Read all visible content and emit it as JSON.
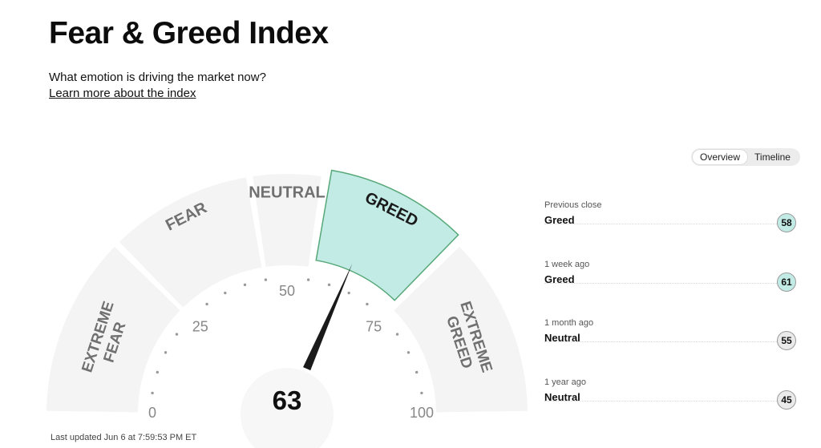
{
  "header": {
    "title": "Fear & Greed Index",
    "subtitle": "What emotion is driving the market now?",
    "learn_more": "Learn more about the index"
  },
  "view_toggle": {
    "options": [
      "Overview",
      "Timeline"
    ],
    "selected": "Overview"
  },
  "gauge": {
    "value": 63,
    "value_text": "63",
    "current_zone": "GREED",
    "zones": [
      {
        "name": "extreme-fear",
        "line1": "EXTREME",
        "line2": "FEAR",
        "from": 0,
        "to": 25
      },
      {
        "name": "fear",
        "line1": "FEAR",
        "line2": "",
        "from": 25,
        "to": 45
      },
      {
        "name": "neutral",
        "line1": "NEUTRAL",
        "line2": "",
        "from": 45,
        "to": 55
      },
      {
        "name": "greed",
        "line1": "GREED",
        "line2": "",
        "from": 55,
        "to": 75
      },
      {
        "name": "extreme-greed",
        "line1": "EXTREME",
        "line2": "GREED",
        "from": 75,
        "to": 100
      }
    ],
    "tick_labels": [
      {
        "value": 0,
        "text": "0"
      },
      {
        "value": 25,
        "text": "25"
      },
      {
        "value": 50,
        "text": "50"
      },
      {
        "value": 75,
        "text": "75"
      },
      {
        "value": 100,
        "text": "100"
      }
    ],
    "colors": {
      "zone_fill": "#f4f4f4",
      "active_fill": "#c3ebe6",
      "active_stroke": "#57a878",
      "needle": "#1a1a1a",
      "tick_text": "#888888"
    }
  },
  "last_updated": "Last updated Jun 6 at 7:59:53 PM ET",
  "history": [
    {
      "label": "Previous close",
      "rating": "Greed",
      "score": "58",
      "badge_color": "#c3ebe6"
    },
    {
      "label": "1 week ago",
      "rating": "Greed",
      "score": "61",
      "badge_color": "#c3ebe6"
    },
    {
      "label": "1 month ago",
      "rating": "Neutral",
      "score": "55",
      "badge_color": "#eaeaea"
    },
    {
      "label": "1 year ago",
      "rating": "Neutral",
      "score": "45",
      "badge_color": "#eaeaea"
    }
  ]
}
